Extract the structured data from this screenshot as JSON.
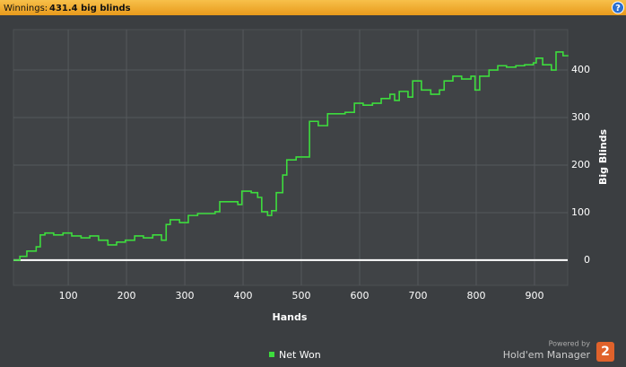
{
  "header": {
    "label": "Winnings:",
    "value": "431.4 big blinds",
    "help": "?"
  },
  "branding": {
    "powered_by": "Powered by",
    "product": "Hold'em Manager",
    "badge": "2"
  },
  "chart_data": {
    "type": "line",
    "step": true,
    "grid": true,
    "legend": "bottom",
    "xlabel": "Hands",
    "ylabel": "Big Blinds",
    "xlim": [
      6,
      957
    ],
    "ylim": [
      -53,
      485
    ],
    "xticks": [
      100,
      200,
      300,
      400,
      500,
      600,
      700,
      800,
      900
    ],
    "yticks": [
      0,
      100,
      200,
      300,
      400
    ],
    "x": [
      6,
      17,
      29,
      45,
      52,
      60,
      75,
      91,
      106,
      122,
      137,
      152,
      168,
      183,
      198,
      214,
      229,
      245,
      260,
      268,
      275,
      291,
      306,
      322,
      337,
      352,
      360,
      375,
      391,
      398,
      414,
      425,
      432,
      442,
      449,
      457,
      468,
      475,
      491,
      506,
      514,
      529,
      545,
      560,
      575,
      591,
      606,
      622,
      637,
      652,
      660,
      668,
      683,
      691,
      706,
      722,
      737,
      745,
      760,
      775,
      791,
      798,
      806,
      822,
      837,
      852,
      868,
      883,
      898,
      903,
      914,
      929,
      937,
      949,
      957
    ],
    "series": [
      {
        "name": "Net Won",
        "color": "#3ddc3d",
        "values": [
          0,
          8,
          19,
          28,
          53,
          57,
          53,
          57,
          51,
          47,
          51,
          42,
          32,
          38,
          42,
          51,
          47,
          53,
          42,
          75,
          85,
          79,
          94,
          98,
          98,
          102,
          123,
          123,
          117,
          145,
          142,
          132,
          102,
          94,
          104,
          142,
          179,
          211,
          217,
          217,
          292,
          283,
          308,
          308,
          311,
          330,
          326,
          330,
          340,
          349,
          336,
          355,
          343,
          377,
          358,
          349,
          358,
          377,
          387,
          381,
          387,
          358,
          387,
          400,
          409,
          406,
          409,
          411,
          415,
          425,
          411,
          400,
          438,
          430,
          431.4
        ]
      }
    ]
  }
}
